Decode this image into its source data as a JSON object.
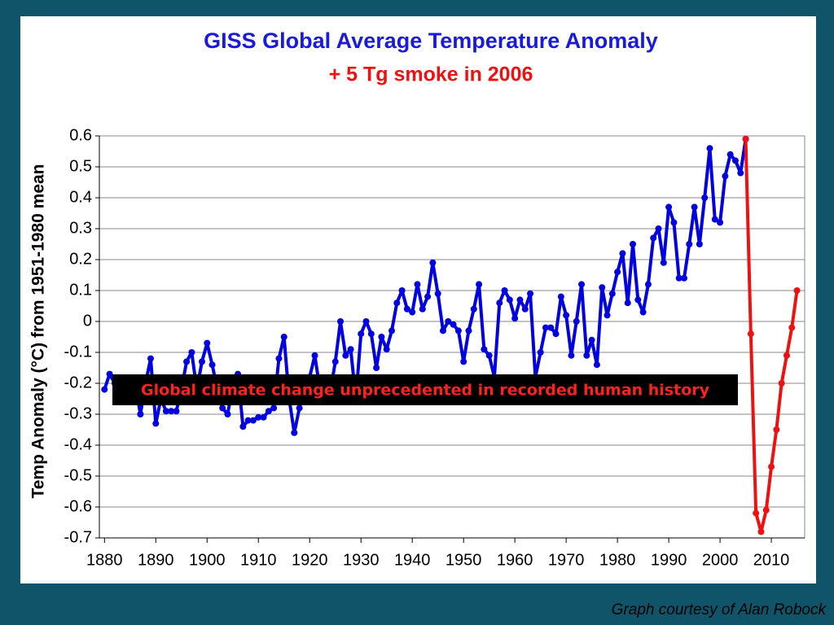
{
  "chart_data": {
    "type": "line",
    "title": "GISS Global Average Temperature Anomaly",
    "subtitle": "+ 5 Tg smoke in 2006",
    "y_label": "Temp Anomaly (°C) from 1951-1980 mean",
    "annotation": "Global climate change unprecedented in recorded human history",
    "credit": "Graph courtesy of Alan Robock",
    "xlim": [
      1879,
      2016.5
    ],
    "ylim": [
      -0.7,
      0.6
    ],
    "xticks": [
      1880,
      1890,
      1900,
      1910,
      1920,
      1930,
      1940,
      1950,
      1960,
      1970,
      1980,
      1990,
      2000,
      2010
    ],
    "yticks": [
      0.6,
      0.5,
      0.4,
      0.3,
      0.2,
      0.1,
      0,
      -0.1,
      -0.2,
      -0.3,
      -0.4,
      -0.5,
      -0.6,
      -0.7
    ],
    "grid": true,
    "series": [
      {
        "color": "#0000e0",
        "x": [
          1880,
          1881,
          1882,
          1883,
          1884,
          1885,
          1886,
          1887,
          1888,
          1889,
          1890,
          1891,
          1892,
          1893,
          1894,
          1895,
          1896,
          1897,
          1898,
          1899,
          1900,
          1901,
          1902,
          1903,
          1904,
          1905,
          1906,
          1907,
          1908,
          1909,
          1910,
          1911,
          1912,
          1913,
          1914,
          1915,
          1916,
          1917,
          1918,
          1919,
          1920,
          1921,
          1922,
          1923,
          1924,
          1925,
          1926,
          1927,
          1928,
          1929,
          1930,
          1931,
          1932,
          1933,
          1934,
          1935,
          1936,
          1937,
          1938,
          1939,
          1940,
          1941,
          1942,
          1943,
          1944,
          1945,
          1946,
          1947,
          1948,
          1949,
          1950,
          1951,
          1952,
          1953,
          1954,
          1955,
          1956,
          1957,
          1958,
          1959,
          1960,
          1961,
          1962,
          1963,
          1964,
          1965,
          1966,
          1967,
          1968,
          1969,
          1970,
          1971,
          1972,
          1973,
          1974,
          1975,
          1976,
          1977,
          1978,
          1979,
          1980,
          1981,
          1982,
          1983,
          1984,
          1985,
          1986,
          1987,
          1988,
          1989,
          1990,
          1991,
          1992,
          1993,
          1994,
          1995,
          1996,
          1997,
          1998,
          1999,
          2000,
          2001,
          2002,
          2003,
          2004,
          2005
        ],
        "values": [
          -0.22,
          -0.17,
          -0.2,
          -0.2,
          -0.25,
          -0.25,
          -0.2,
          -0.3,
          -0.2,
          -0.12,
          -0.33,
          -0.25,
          -0.29,
          -0.29,
          -0.29,
          -0.22,
          -0.13,
          -0.1,
          -0.22,
          -0.13,
          -0.07,
          -0.14,
          -0.22,
          -0.28,
          -0.3,
          -0.21,
          -0.17,
          -0.34,
          -0.32,
          -0.32,
          -0.31,
          -0.31,
          -0.29,
          -0.28,
          -0.12,
          -0.05,
          -0.25,
          -0.36,
          -0.28,
          -0.2,
          -0.18,
          -0.11,
          -0.22,
          -0.2,
          -0.23,
          -0.13,
          0.0,
          -0.11,
          -0.09,
          -0.25,
          -0.04,
          0.0,
          -0.04,
          -0.15,
          -0.05,
          -0.09,
          -0.03,
          0.06,
          0.1,
          0.04,
          0.03,
          0.12,
          0.04,
          0.08,
          0.19,
          0.09,
          -0.03,
          0.0,
          -0.01,
          -0.03,
          -0.13,
          -0.03,
          0.04,
          0.12,
          -0.09,
          -0.11,
          -0.18,
          0.06,
          0.1,
          0.07,
          0.01,
          0.07,
          0.04,
          0.09,
          -0.18,
          -0.1,
          -0.02,
          -0.02,
          -0.04,
          0.08,
          0.02,
          -0.11,
          0.0,
          0.12,
          -0.11,
          -0.06,
          -0.14,
          0.11,
          0.02,
          0.09,
          0.16,
          0.22,
          0.06,
          0.25,
          0.07,
          0.03,
          0.12,
          0.27,
          0.3,
          0.19,
          0.37,
          0.32,
          0.14,
          0.14,
          0.25,
          0.37,
          0.25,
          0.4,
          0.56,
          0.33,
          0.32,
          0.47,
          0.54,
          0.52,
          0.48,
          0.59
        ]
      },
      {
        "color": "#ee1111",
        "x": [
          2005,
          2006,
          2007,
          2008,
          2009,
          2010,
          2011,
          2012,
          2013,
          2014,
          2015
        ],
        "values": [
          0.59,
          -0.04,
          -0.62,
          -0.68,
          -0.61,
          -0.47,
          -0.35,
          -0.2,
          -0.11,
          -0.02,
          0.1
        ]
      }
    ]
  }
}
